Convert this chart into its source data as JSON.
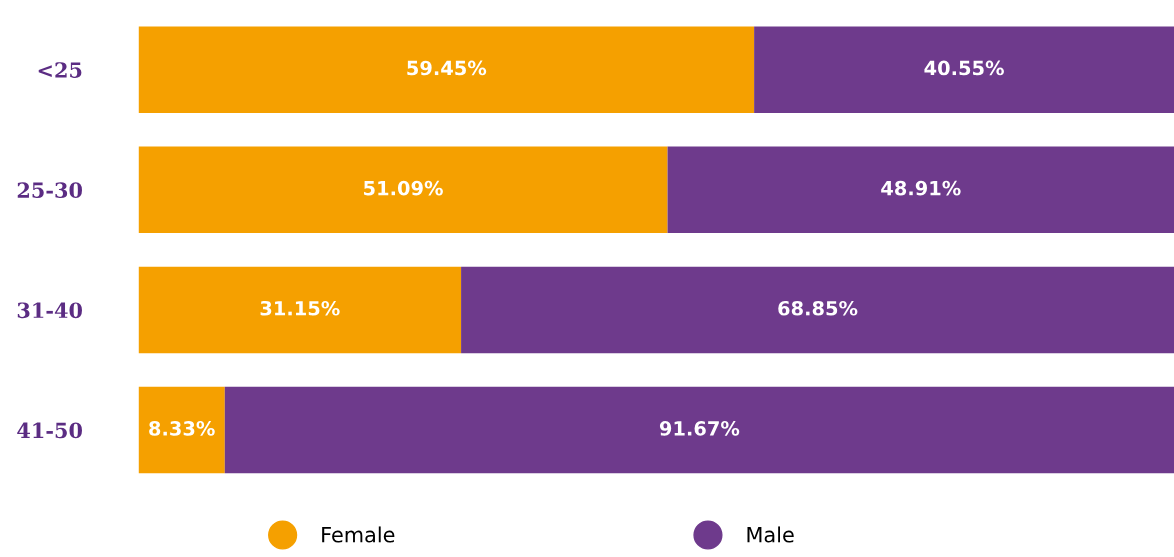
{
  "chart_data": {
    "type": "bar",
    "orientation": "horizontal",
    "stacked": true,
    "legend": "bottom",
    "categories": [
      "<25",
      "25-30",
      "31-40",
      "41-50"
    ],
    "series": [
      {
        "name": "Female",
        "color": "#f5a000",
        "values": [
          59.45,
          51.09,
          31.15,
          8.33
        ],
        "value_labels": [
          "59.45%",
          "51.09%",
          "31.15%",
          "8.33%"
        ]
      },
      {
        "name": "Male",
        "color": "#6e3a8c",
        "values": [
          40.55,
          48.91,
          68.85,
          91.67
        ],
        "value_labels": [
          "40.55%",
          "48.91%",
          "68.85%",
          "91.67%"
        ]
      }
    ]
  }
}
